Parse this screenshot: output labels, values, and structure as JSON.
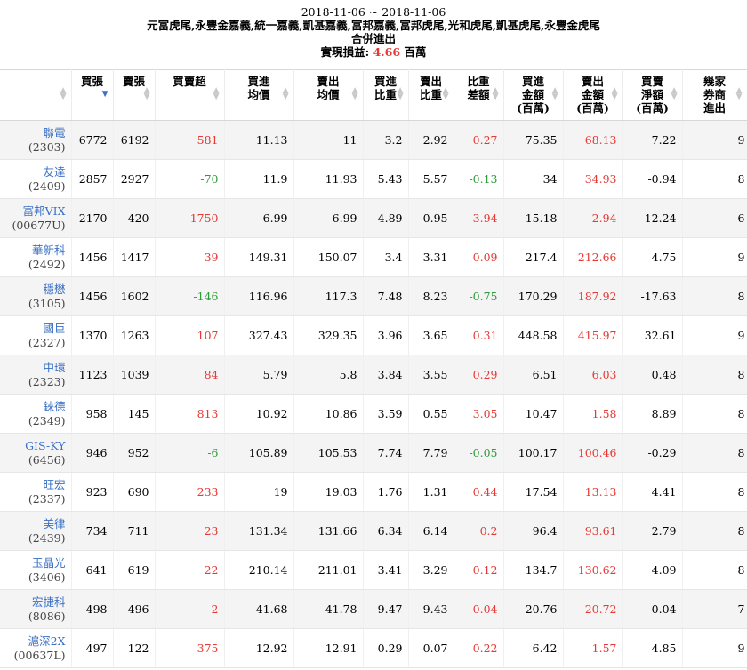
{
  "header": {
    "date_range": "2018-11-06 ~ 2018-11-06",
    "brokers": "元富虎尾,永豐金嘉義,統一嘉義,凱基嘉義,富邦嘉義,富邦虎尾,光和虎尾,凱基虎尾,永豐金虎尾",
    "subtitle": "合併進出",
    "profit_label": "實現損益: ",
    "profit_value": "4.66",
    "profit_unit": " 百萬"
  },
  "columns": [
    {
      "label": "",
      "sort": "none"
    },
    {
      "label": "買張",
      "sort": "desc"
    },
    {
      "label": "賣張",
      "sort": "none"
    },
    {
      "label": "買賣超",
      "sort": "none"
    },
    {
      "label": "買進\n均價",
      "sort": "none"
    },
    {
      "label": "賣出\n均價",
      "sort": "none"
    },
    {
      "label": "買進\n比重",
      "sort": "none"
    },
    {
      "label": "賣出\n比重",
      "sort": "none"
    },
    {
      "label": "比重\n差額",
      "sort": "none"
    },
    {
      "label": "買進\n金額\n(百萬)",
      "sort": "none"
    },
    {
      "label": "賣出\n金額\n(百萬)",
      "sort": "none"
    },
    {
      "label": "買賣\n淨額\n(百萬)",
      "sort": "none"
    },
    {
      "label": "幾家\n券商\n進出",
      "sort": "none"
    }
  ],
  "rows": [
    {
      "name": "聯電",
      "code": "(2303)",
      "buy": "6772",
      "sell": "6192",
      "net": "581",
      "buy_avg": "11.13",
      "sell_avg": "11",
      "buy_pct": "3.2",
      "sell_pct": "2.92",
      "diff": "0.27",
      "buy_amt": "75.35",
      "sell_amt": "68.13",
      "net_amt": "7.22",
      "brokers": "9"
    },
    {
      "name": "友達",
      "code": "(2409)",
      "buy": "2857",
      "sell": "2927",
      "net": "-70",
      "buy_avg": "11.9",
      "sell_avg": "11.93",
      "buy_pct": "5.43",
      "sell_pct": "5.57",
      "diff": "-0.13",
      "buy_amt": "34",
      "sell_amt": "34.93",
      "net_amt": "-0.94",
      "brokers": "8"
    },
    {
      "name": "富邦VIX",
      "code": "(00677U)",
      "buy": "2170",
      "sell": "420",
      "net": "1750",
      "buy_avg": "6.99",
      "sell_avg": "6.99",
      "buy_pct": "4.89",
      "sell_pct": "0.95",
      "diff": "3.94",
      "buy_amt": "15.18",
      "sell_amt": "2.94",
      "net_amt": "12.24",
      "brokers": "6"
    },
    {
      "name": "華新科",
      "code": "(2492)",
      "buy": "1456",
      "sell": "1417",
      "net": "39",
      "buy_avg": "149.31",
      "sell_avg": "150.07",
      "buy_pct": "3.4",
      "sell_pct": "3.31",
      "diff": "0.09",
      "buy_amt": "217.4",
      "sell_amt": "212.66",
      "net_amt": "4.75",
      "brokers": "9"
    },
    {
      "name": "穩懋",
      "code": "(3105)",
      "buy": "1456",
      "sell": "1602",
      "net": "-146",
      "buy_avg": "116.96",
      "sell_avg": "117.3",
      "buy_pct": "7.48",
      "sell_pct": "8.23",
      "diff": "-0.75",
      "buy_amt": "170.29",
      "sell_amt": "187.92",
      "net_amt": "-17.63",
      "brokers": "8"
    },
    {
      "name": "國巨",
      "code": "(2327)",
      "buy": "1370",
      "sell": "1263",
      "net": "107",
      "buy_avg": "327.43",
      "sell_avg": "329.35",
      "buy_pct": "3.96",
      "sell_pct": "3.65",
      "diff": "0.31",
      "buy_amt": "448.58",
      "sell_amt": "415.97",
      "net_amt": "32.61",
      "brokers": "9"
    },
    {
      "name": "中環",
      "code": "(2323)",
      "buy": "1123",
      "sell": "1039",
      "net": "84",
      "buy_avg": "5.79",
      "sell_avg": "5.8",
      "buy_pct": "3.84",
      "sell_pct": "3.55",
      "diff": "0.29",
      "buy_amt": "6.51",
      "sell_amt": "6.03",
      "net_amt": "0.48",
      "brokers": "8"
    },
    {
      "name": "錸德",
      "code": "(2349)",
      "buy": "958",
      "sell": "145",
      "net": "813",
      "buy_avg": "10.92",
      "sell_avg": "10.86",
      "buy_pct": "3.59",
      "sell_pct": "0.55",
      "diff": "3.05",
      "buy_amt": "10.47",
      "sell_amt": "1.58",
      "net_amt": "8.89",
      "brokers": "8"
    },
    {
      "name": "GIS-KY",
      "code": "(6456)",
      "buy": "946",
      "sell": "952",
      "net": "-6",
      "buy_avg": "105.89",
      "sell_avg": "105.53",
      "buy_pct": "7.74",
      "sell_pct": "7.79",
      "diff": "-0.05",
      "buy_amt": "100.17",
      "sell_amt": "100.46",
      "net_amt": "-0.29",
      "brokers": "8"
    },
    {
      "name": "旺宏",
      "code": "(2337)",
      "buy": "923",
      "sell": "690",
      "net": "233",
      "buy_avg": "19",
      "sell_avg": "19.03",
      "buy_pct": "1.76",
      "sell_pct": "1.31",
      "diff": "0.44",
      "buy_amt": "17.54",
      "sell_amt": "13.13",
      "net_amt": "4.41",
      "brokers": "8"
    },
    {
      "name": "美律",
      "code": "(2439)",
      "buy": "734",
      "sell": "711",
      "net": "23",
      "buy_avg": "131.34",
      "sell_avg": "131.66",
      "buy_pct": "6.34",
      "sell_pct": "6.14",
      "diff": "0.2",
      "buy_amt": "96.4",
      "sell_amt": "93.61",
      "net_amt": "2.79",
      "brokers": "8"
    },
    {
      "name": "玉晶光",
      "code": "(3406)",
      "buy": "641",
      "sell": "619",
      "net": "22",
      "buy_avg": "210.14",
      "sell_avg": "211.01",
      "buy_pct": "3.41",
      "sell_pct": "3.29",
      "diff": "0.12",
      "buy_amt": "134.7",
      "sell_amt": "130.62",
      "net_amt": "4.09",
      "brokers": "8"
    },
    {
      "name": "宏捷科",
      "code": "(8086)",
      "buy": "498",
      "sell": "496",
      "net": "2",
      "buy_avg": "41.68",
      "sell_avg": "41.78",
      "buy_pct": "9.47",
      "sell_pct": "9.43",
      "diff": "0.04",
      "buy_amt": "20.76",
      "sell_amt": "20.72",
      "net_amt": "0.04",
      "brokers": "7"
    },
    {
      "name": "滬深2X",
      "code": "(00637L)",
      "buy": "497",
      "sell": "122",
      "net": "375",
      "buy_avg": "12.92",
      "sell_avg": "12.91",
      "buy_pct": "0.29",
      "sell_pct": "0.07",
      "diff": "0.22",
      "buy_amt": "6.42",
      "sell_amt": "1.57",
      "net_amt": "4.85",
      "brokers": "9"
    }
  ],
  "colors": {
    "link": "#3a6fc4",
    "positive": "#e53935",
    "negative": "#2e9a3a"
  }
}
